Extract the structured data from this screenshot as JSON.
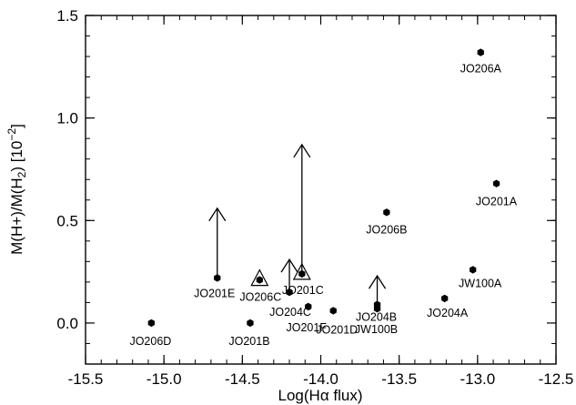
{
  "chart_data": {
    "type": "scatter",
    "xlabel": "Log(Hα flux)",
    "ylabel_parts": [
      "M(H+)/M(H",
      "2",
      ") [10",
      "−2",
      "]"
    ],
    "xlim": [
      -15.5,
      -12.5
    ],
    "ylim": [
      -0.2,
      1.5
    ],
    "x_ticks": [
      "-15.5",
      "-15.0",
      "-14.5",
      "-14.0",
      "-13.5",
      "-13.0",
      "-12.5"
    ],
    "y_ticks": [
      "0.0",
      "0.5",
      "1.0",
      "1.5"
    ],
    "grid": false,
    "points": [
      {
        "name": "JO206A",
        "x": -12.98,
        "y": 1.32
      },
      {
        "name": "JO201A",
        "x": -12.88,
        "y": 0.68
      },
      {
        "name": "JO206B",
        "x": -13.58,
        "y": 0.54
      },
      {
        "name": "JW100A",
        "x": -13.03,
        "y": 0.26
      },
      {
        "name": "JO204A",
        "x": -13.21,
        "y": 0.12
      },
      {
        "name": "JO201E",
        "x": -14.66,
        "y": 0.22,
        "upper_arrow_to": 0.56
      },
      {
        "name": "JO206C",
        "x": -14.39,
        "y": 0.21,
        "triangle": true
      },
      {
        "name": "JO201C",
        "x": -14.12,
        "y": 0.24,
        "triangle": true,
        "upper_arrow_to": 0.87
      },
      {
        "name": "JO204C",
        "x": -14.2,
        "y": 0.15,
        "upper_arrow_to": 0.31
      },
      {
        "name": "JO201F",
        "x": -14.08,
        "y": 0.08
      },
      {
        "name": "JO201D",
        "x": -13.92,
        "y": 0.06
      },
      {
        "name": "JO204B",
        "x": -13.64,
        "y": 0.09,
        "upper_arrow_to": 0.23
      },
      {
        "name": "JW100B",
        "x": -13.64,
        "y": 0.07
      },
      {
        "name": "JO201B",
        "x": -14.45,
        "y": 0.0
      },
      {
        "name": "JO206D",
        "x": -15.08,
        "y": 0.0
      }
    ]
  }
}
